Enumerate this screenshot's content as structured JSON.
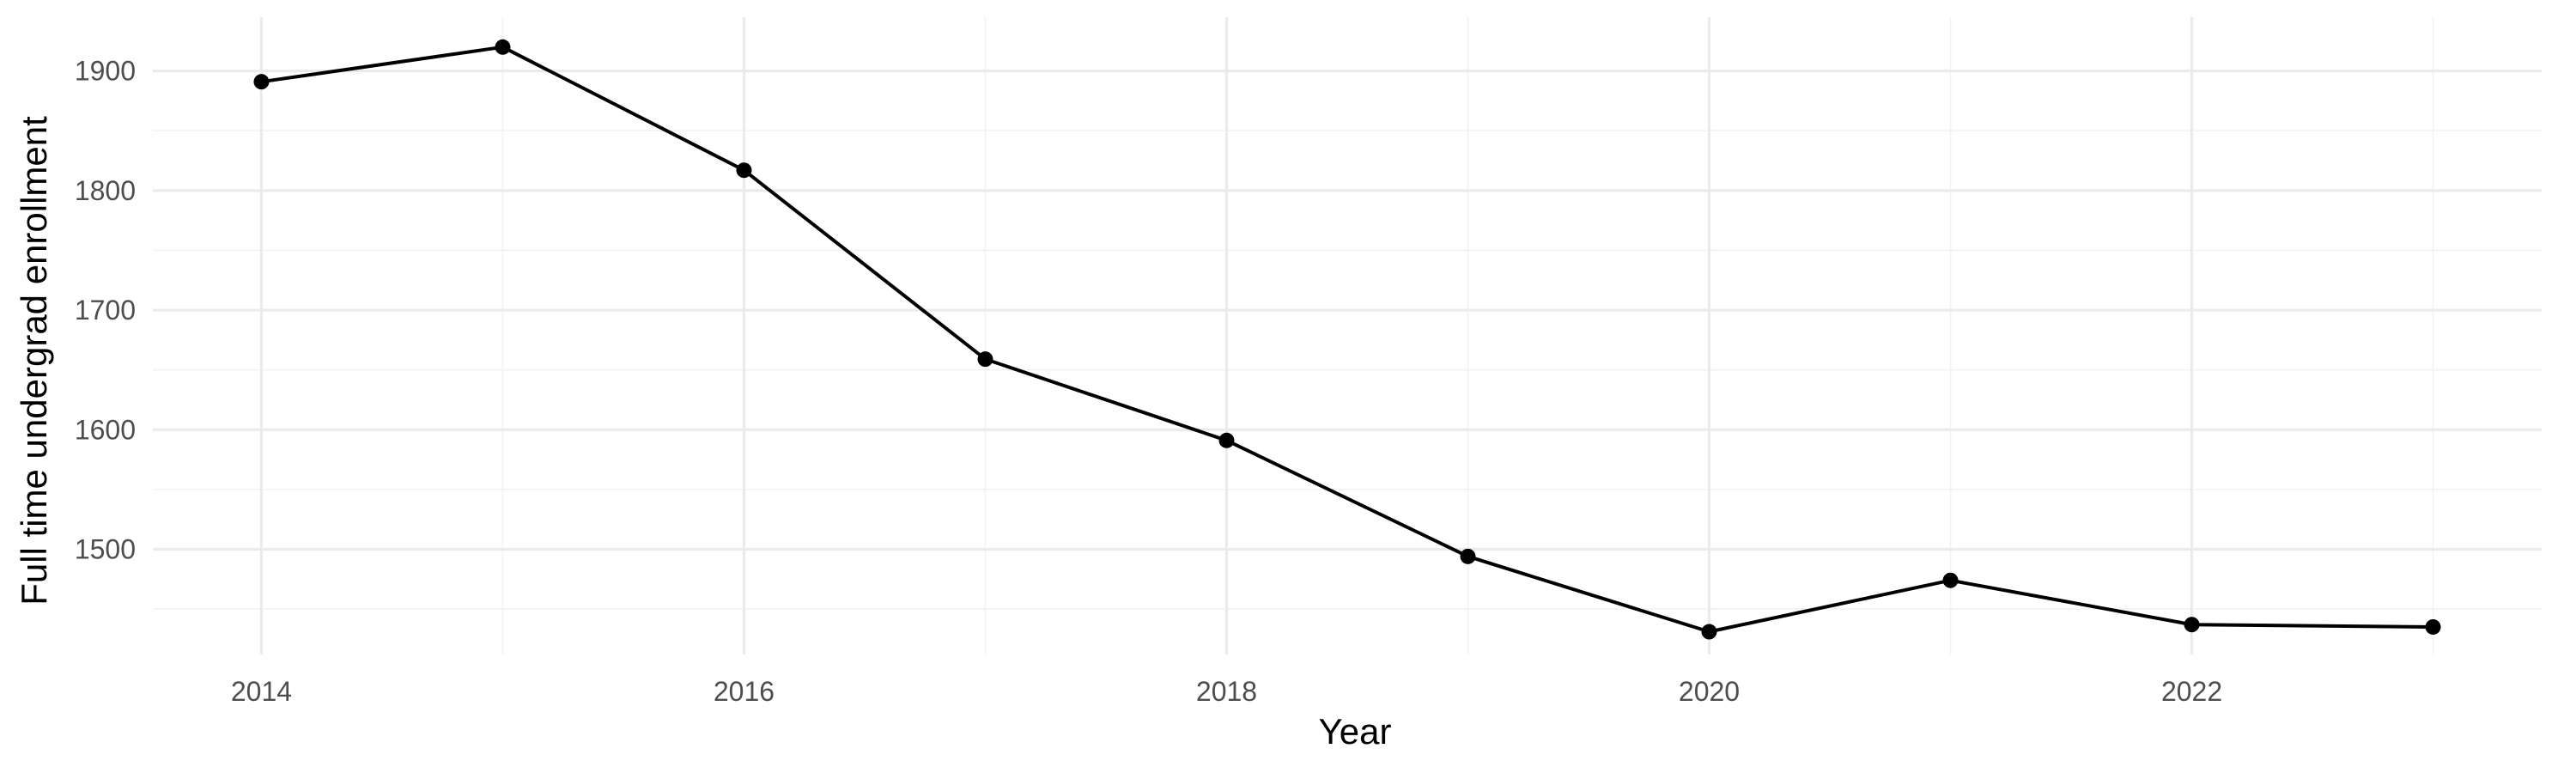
{
  "chart_data": {
    "type": "line",
    "title": "",
    "xlabel": "Year",
    "ylabel": "Full time undergrad enrollment",
    "x": [
      2014,
      2015,
      2016,
      2017,
      2018,
      2019,
      2020,
      2021,
      2022,
      2023
    ],
    "series": [
      {
        "values": [
          1891,
          1920,
          1817,
          1659,
          1591,
          1494,
          1431,
          1474,
          1437,
          1435
        ]
      }
    ],
    "xlim": [
      2013.55,
      2023.45
    ],
    "ylim": [
      1412,
      1945
    ],
    "x_ticks": [
      2014,
      2016,
      2018,
      2020,
      2022
    ],
    "x_tick_labels": [
      "2014",
      "2016",
      "2018",
      "2020",
      "2022"
    ],
    "y_ticks": [
      1500,
      1600,
      1700,
      1800,
      1900
    ],
    "y_tick_labels": [
      "1500",
      "1600",
      "1700",
      "1800",
      "1900"
    ],
    "grid": true,
    "legend": "none",
    "colors": {
      "line": "#000000",
      "points": "#000000",
      "grid": "#ebebeb",
      "tick_text": "#4d4d4d"
    }
  }
}
